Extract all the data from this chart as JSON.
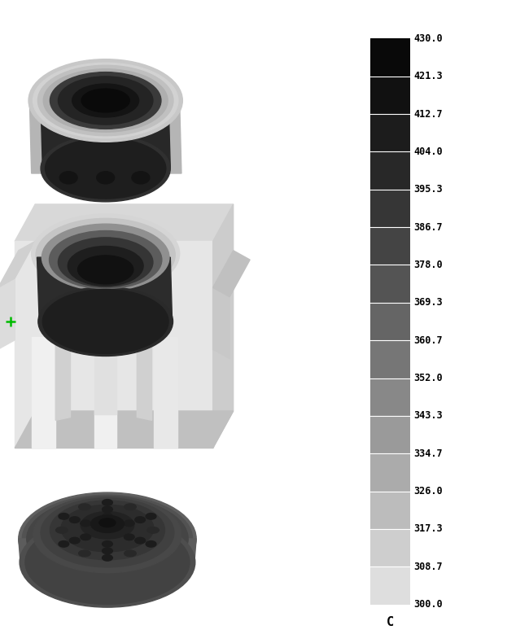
{
  "colorbar_label": "C",
  "temp_values": [
    430.0,
    421.3,
    412.7,
    404.0,
    395.3,
    386.7,
    378.0,
    369.3,
    360.7,
    352.0,
    343.3,
    334.7,
    326.0,
    317.3,
    308.7,
    300.0
  ],
  "colors_hex": [
    "#090909",
    "#111111",
    "#1c1c1c",
    "#282828",
    "#363636",
    "#444444",
    "#545454",
    "#656565",
    "#767676",
    "#888888",
    "#9a9a9a",
    "#ababab",
    "#bcbcbc",
    "#cecece",
    "#dedede",
    "#eeeeee"
  ],
  "background_color": "#ffffff"
}
